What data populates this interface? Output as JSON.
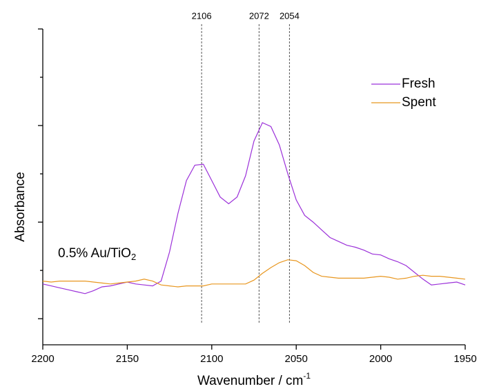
{
  "chart_data": {
    "type": "line",
    "xlabel": {
      "text": "Wavenumber / cm",
      "sup": "-1"
    },
    "ylabel": "Absorbance",
    "annotation": {
      "text": "0.5% Au/TiO",
      "sub": "2"
    },
    "markers": [
      2106,
      2072,
      2054
    ],
    "xlim": [
      2200,
      1950
    ],
    "xticks": [
      2200,
      2150,
      2100,
      2050,
      2000,
      1950
    ],
    "ylim": [
      -0.27,
      3
    ],
    "yticks": [
      0,
      0.5,
      1,
      1.5,
      2,
      2.5,
      3
    ],
    "legend": "upper right",
    "x": [
      2200,
      2195,
      2190,
      2185,
      2180,
      2175,
      2170,
      2165,
      2160,
      2155,
      2150,
      2145,
      2140,
      2135,
      2130,
      2125,
      2120,
      2115,
      2110,
      2105,
      2100,
      2095,
      2090,
      2085,
      2080,
      2075,
      2070,
      2065,
      2060,
      2055,
      2050,
      2045,
      2040,
      2035,
      2030,
      2025,
      2020,
      2015,
      2010,
      2005,
      2000,
      1995,
      1990,
      1985,
      1980,
      1975,
      1970,
      1965,
      1960,
      1955,
      1950
    ],
    "series": [
      {
        "name": "Fresh",
        "color": "#9b30d9",
        "values": [
          0.36,
          0.34,
          0.32,
          0.3,
          0.28,
          0.26,
          0.29,
          0.33,
          0.34,
          0.36,
          0.38,
          0.36,
          0.35,
          0.34,
          0.39,
          0.69,
          1.09,
          1.43,
          1.59,
          1.6,
          1.43,
          1.26,
          1.19,
          1.26,
          1.48,
          1.84,
          2.03,
          1.99,
          1.8,
          1.5,
          1.23,
          1.07,
          1.0,
          0.92,
          0.84,
          0.8,
          0.76,
          0.74,
          0.71,
          0.67,
          0.66,
          0.62,
          0.59,
          0.55,
          0.48,
          0.41,
          0.35,
          0.36,
          0.37,
          0.38,
          0.35
        ]
      },
      {
        "name": "Spent",
        "color": "#e8961e",
        "values": [
          0.39,
          0.38,
          0.39,
          0.39,
          0.39,
          0.39,
          0.38,
          0.37,
          0.36,
          0.37,
          0.38,
          0.39,
          0.41,
          0.39,
          0.35,
          0.34,
          0.33,
          0.34,
          0.34,
          0.34,
          0.36,
          0.36,
          0.36,
          0.36,
          0.36,
          0.4,
          0.47,
          0.53,
          0.58,
          0.61,
          0.6,
          0.55,
          0.48,
          0.44,
          0.43,
          0.42,
          0.42,
          0.42,
          0.42,
          0.43,
          0.44,
          0.43,
          0.41,
          0.42,
          0.44,
          0.45,
          0.44,
          0.44,
          0.43,
          0.42,
          0.41
        ]
      }
    ]
  }
}
